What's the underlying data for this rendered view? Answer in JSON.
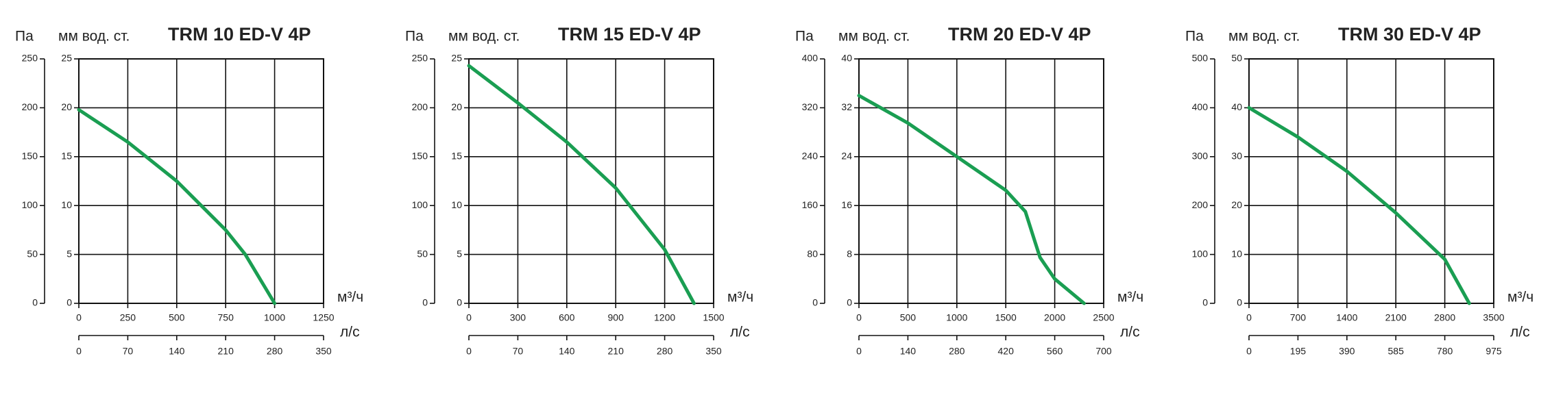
{
  "chart_data": [
    {
      "type": "line",
      "title": "TRM 10 ED-V 4P",
      "y_label": "Па",
      "y2_label": "мм вод. ст.",
      "x_label": "м³/ч",
      "x2_label": "л/с",
      "x": [
        0,
        250,
        500,
        625,
        750,
        850,
        1000
      ],
      "series": [
        {
          "color": "#1a9e52",
          "values": [
            198,
            165,
            125,
            100,
            75,
            50,
            0
          ]
        }
      ],
      "xlim": [
        0,
        1250
      ],
      "xticks": [
        0,
        250,
        500,
        750,
        1000,
        1250
      ],
      "x2lim": [
        0,
        350
      ],
      "x2ticks": [
        0,
        70,
        140,
        210,
        280,
        350
      ],
      "ylim": [
        0,
        250
      ],
      "yticks": [
        0,
        50,
        100,
        150,
        200,
        250
      ],
      "y2lim": [
        0,
        25
      ],
      "y2ticks": [
        0,
        5,
        10,
        15,
        20,
        25
      ],
      "grid": true
    },
    {
      "type": "line",
      "title": "TRM 15 ED-V 4P",
      "y_label": "Па",
      "y2_label": "мм вод. ст.",
      "x_label": "м³/ч",
      "x2_label": "л/с",
      "x": [
        0,
        300,
        600,
        900,
        1200,
        1380
      ],
      "series": [
        {
          "color": "#1a9e52",
          "values": [
            243,
            205,
            165,
            118,
            55,
            0
          ]
        }
      ],
      "xlim": [
        0,
        1500
      ],
      "xticks": [
        0,
        300,
        600,
        900,
        1200,
        1500
      ],
      "x2lim": [
        0,
        350
      ],
      "x2ticks": [
        0,
        70,
        140,
        210,
        280,
        350
      ],
      "ylim": [
        0,
        250
      ],
      "yticks": [
        0,
        50,
        100,
        150,
        200,
        250
      ],
      "y2lim": [
        0,
        25
      ],
      "y2ticks": [
        0,
        5,
        10,
        15,
        20,
        25
      ],
      "grid": true
    },
    {
      "type": "line",
      "title": "TRM 20 ED-V 4P",
      "y_label": "Па",
      "y2_label": "мм вод. ст.",
      "x_label": "м³/ч",
      "x2_label": "л/с",
      "x": [
        0,
        500,
        1000,
        1500,
        1700,
        1800,
        1850,
        2000,
        2300
      ],
      "series": [
        {
          "color": "#1a9e52",
          "values": [
            340,
            295,
            240,
            185,
            150,
            100,
            75,
            40,
            0
          ]
        }
      ],
      "xlim": [
        0,
        2500
      ],
      "xticks": [
        0,
        500,
        1000,
        1500,
        2000,
        2500
      ],
      "x2lim": [
        0,
        700
      ],
      "x2ticks": [
        0,
        140,
        280,
        420,
        560,
        700
      ],
      "ylim": [
        0,
        400
      ],
      "yticks": [
        0,
        80,
        160,
        240,
        320,
        400
      ],
      "y2lim": [
        0,
        40
      ],
      "y2ticks": [
        0,
        8,
        16,
        24,
        32,
        40
      ],
      "grid": true
    },
    {
      "type": "line",
      "title": "TRM 30 ED-V 4P",
      "y_label": "Па",
      "y2_label": "мм вод. ст.",
      "x_label": "м³/ч",
      "x2_label": "л/с",
      "x": [
        0,
        700,
        1400,
        2100,
        2800,
        3150
      ],
      "series": [
        {
          "color": "#1a9e52",
          "values": [
            400,
            340,
            270,
            185,
            90,
            0
          ]
        }
      ],
      "xlim": [
        0,
        3500
      ],
      "xticks": [
        0,
        700,
        1400,
        2100,
        2800,
        3500
      ],
      "x2lim": [
        0,
        975
      ],
      "x2ticks": [
        0,
        195,
        390,
        585,
        780,
        975
      ],
      "ylim": [
        0,
        500
      ],
      "yticks": [
        0,
        100,
        200,
        300,
        400,
        500
      ],
      "y2lim": [
        0,
        50
      ],
      "y2ticks": [
        0,
        10,
        20,
        30,
        40,
        50
      ],
      "grid": true
    }
  ]
}
